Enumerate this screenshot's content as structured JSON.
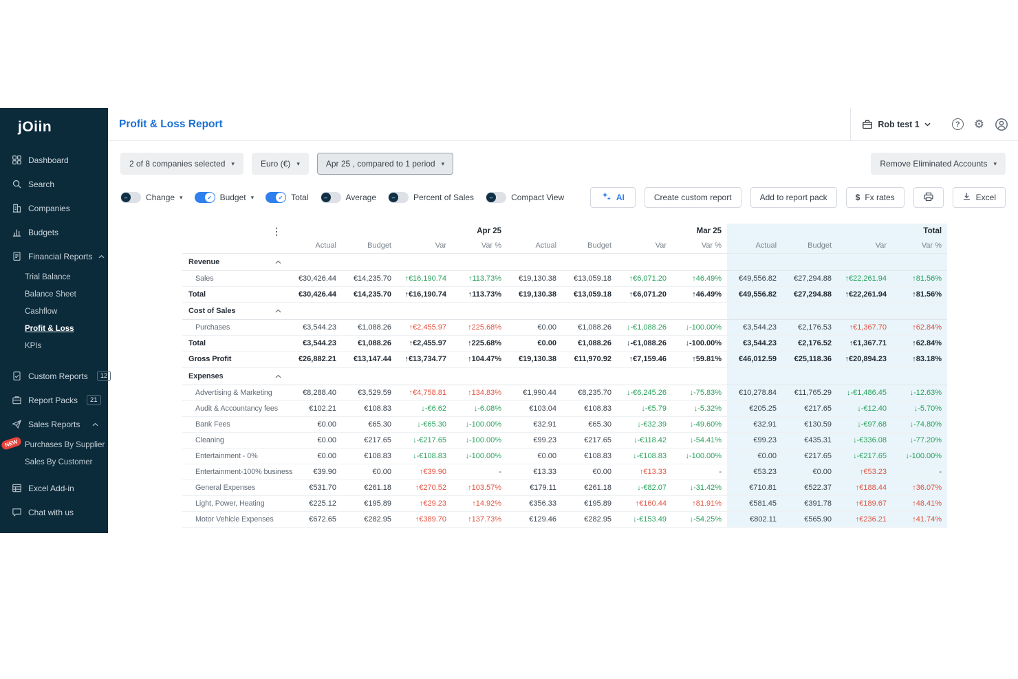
{
  "brand": {
    "logo": "jOiin"
  },
  "colors": {
    "sidebar_bg": "#0b2a3a",
    "title_blue": "#1a6fd4",
    "accent_blue": "#2f80ed",
    "positive_green": "#27a05b",
    "negative_red": "#e2513f",
    "total_highlight": "#e9f5fa"
  },
  "sidebar": {
    "items": [
      {
        "id": "dashboard",
        "label": "Dashboard",
        "icon": "dashboard"
      },
      {
        "id": "search",
        "label": "Search",
        "icon": "search"
      },
      {
        "id": "companies",
        "label": "Companies",
        "icon": "companies"
      },
      {
        "id": "budgets",
        "label": "Budgets",
        "icon": "budgets"
      },
      {
        "id": "financial-reports",
        "label": "Financial Reports",
        "icon": "report",
        "expanded": true,
        "children": [
          {
            "id": "trial-balance",
            "label": "Trial Balance"
          },
          {
            "id": "balance-sheet",
            "label": "Balance Sheet"
          },
          {
            "id": "cashflow",
            "label": "Cashflow"
          },
          {
            "id": "profit-and-loss",
            "label": "Profit & Loss",
            "active": true
          },
          {
            "id": "kpis",
            "label": "KPIs"
          }
        ]
      },
      {
        "id": "custom-reports",
        "label": "Custom Reports",
        "icon": "custom",
        "badge": "12",
        "gap": true
      },
      {
        "id": "report-packs",
        "label": "Report Packs",
        "icon": "packs",
        "badge": "21"
      },
      {
        "id": "sales-reports",
        "label": "Sales Reports",
        "icon": "sales",
        "expanded": true,
        "children": [
          {
            "id": "purchases-by-supplier",
            "label": "Purchases By Supplier",
            "new": "NEW"
          },
          {
            "id": "sales-by-customer",
            "label": "Sales By Customer"
          }
        ]
      },
      {
        "id": "excel-addin",
        "label": "Excel Add-in",
        "icon": "excel",
        "gapsm": true
      },
      {
        "id": "chat-with-us",
        "label": "Chat with us",
        "icon": "chat"
      }
    ]
  },
  "header": {
    "title": "Profit & Loss Report",
    "account": "Rob test 1"
  },
  "filters": {
    "companies": "2 of 8 companies selected",
    "currency": "Euro (€)",
    "period": "Apr 25 , compared to 1 period",
    "eliminated": "Remove Eliminated Accounts"
  },
  "toolbar": {
    "toggles": [
      {
        "label": "Change",
        "on": false,
        "caret": true
      },
      {
        "label": "Budget",
        "on": true,
        "caret": true
      },
      {
        "label": "Total",
        "on": true,
        "caret": false
      },
      {
        "label": "Average",
        "on": false,
        "caret": false
      },
      {
        "label": "Percent of Sales",
        "on": false,
        "caret": false
      },
      {
        "label": "Compact View",
        "on": false,
        "caret": false
      }
    ],
    "buttons": {
      "ai": "AI",
      "create_custom_report": "Create custom report",
      "add_to_report_pack": "Add to report pack",
      "fx_symbol": "$",
      "fx_rates": "Fx rates",
      "excel": "Excel"
    }
  },
  "table": {
    "groups": [
      {
        "label": "Apr 25",
        "highlight": false
      },
      {
        "label": "Mar 25",
        "highlight": false
      },
      {
        "label": "Total",
        "highlight": true
      }
    ],
    "subheaders": [
      "Actual",
      "Budget",
      "Var",
      "Var %"
    ],
    "rows": [
      {
        "type": "section",
        "label": "Revenue"
      },
      {
        "type": "data",
        "label": "Sales",
        "cells": [
          [
            "€30,426.44"
          ],
          [
            "€14,235.70"
          ],
          [
            "↑€16,190.74",
            "g"
          ],
          [
            "↑113.73%",
            "g"
          ],
          [
            "€19,130.38"
          ],
          [
            "€13,059.18"
          ],
          [
            "↑€6,071.20",
            "g"
          ],
          [
            "↑46.49%",
            "g"
          ],
          [
            "€49,556.82"
          ],
          [
            "€27,294.88"
          ],
          [
            "↑€22,261.94",
            "g"
          ],
          [
            "↑81.56%",
            "g"
          ]
        ]
      },
      {
        "type": "total",
        "label": "Total",
        "cells": [
          [
            "€30,426.44"
          ],
          [
            "€14,235.70"
          ],
          [
            "↑€16,190.74",
            "g"
          ],
          [
            "↑113.73%",
            "g"
          ],
          [
            "€19,130.38"
          ],
          [
            "€13,059.18"
          ],
          [
            "↑€6,071.20",
            "g"
          ],
          [
            "↑46.49%",
            "g"
          ],
          [
            "€49,556.82"
          ],
          [
            "€27,294.88"
          ],
          [
            "↑€22,261.94",
            "g"
          ],
          [
            "↑81.56%",
            "g"
          ]
        ]
      },
      {
        "type": "section",
        "label": "Cost of Sales"
      },
      {
        "type": "data",
        "label": "Purchases",
        "cells": [
          [
            "€3,544.23"
          ],
          [
            "€1,088.26"
          ],
          [
            "↑€2,455.97",
            "r"
          ],
          [
            "↑225.68%",
            "r"
          ],
          [
            "€0.00"
          ],
          [
            "€1,088.26"
          ],
          [
            "↓-€1,088.26",
            "g"
          ],
          [
            "↓-100.00%",
            "g"
          ],
          [
            "€3,544.23"
          ],
          [
            "€2,176.53"
          ],
          [
            "↑€1,367.70",
            "r"
          ],
          [
            "↑62.84%",
            "r"
          ]
        ]
      },
      {
        "type": "total",
        "label": "Total",
        "cells": [
          [
            "€3,544.23"
          ],
          [
            "€1,088.26"
          ],
          [
            "↑€2,455.97",
            "r"
          ],
          [
            "↑225.68%",
            "r"
          ],
          [
            "€0.00"
          ],
          [
            "€1,088.26"
          ],
          [
            "↓-€1,088.26",
            "g"
          ],
          [
            "↓-100.00%",
            "g"
          ],
          [
            "€3,544.23"
          ],
          [
            "€2,176.52"
          ],
          [
            "↑€1,367.71",
            "r"
          ],
          [
            "↑62.84%",
            "r"
          ]
        ]
      },
      {
        "type": "gross",
        "label": "Gross Profit",
        "cells": [
          [
            "€26,882.21"
          ],
          [
            "€13,147.44"
          ],
          [
            "↑€13,734.77",
            "g"
          ],
          [
            "↑104.47%",
            "g"
          ],
          [
            "€19,130.38"
          ],
          [
            "€11,970.92"
          ],
          [
            "↑€7,159.46",
            "g"
          ],
          [
            "↑59.81%",
            "g"
          ],
          [
            "€46,012.59"
          ],
          [
            "€25,118.36"
          ],
          [
            "↑€20,894.23",
            "g"
          ],
          [
            "↑83.18%",
            "g"
          ]
        ]
      },
      {
        "type": "section",
        "label": "Expenses"
      },
      {
        "type": "data",
        "label": "Advertising & Marketing",
        "cells": [
          [
            "€8,288.40"
          ],
          [
            "€3,529.59"
          ],
          [
            "↑€4,758.81",
            "r"
          ],
          [
            "↑134.83%",
            "r"
          ],
          [
            "€1,990.44"
          ],
          [
            "€8,235.70"
          ],
          [
            "↓-€6,245.26",
            "g"
          ],
          [
            "↓-75.83%",
            "g"
          ],
          [
            "€10,278.84"
          ],
          [
            "€11,765.29"
          ],
          [
            "↓-€1,486.45",
            "g"
          ],
          [
            "↓-12.63%",
            "g"
          ]
        ]
      },
      {
        "type": "data",
        "label": "Audit & Accountancy fees",
        "cells": [
          [
            "€102.21"
          ],
          [
            "€108.83"
          ],
          [
            "↓-€6.62",
            "g"
          ],
          [
            "↓-6.08%",
            "g"
          ],
          [
            "€103.04"
          ],
          [
            "€108.83"
          ],
          [
            "↓-€5.79",
            "g"
          ],
          [
            "↓-5.32%",
            "g"
          ],
          [
            "€205.25"
          ],
          [
            "€217.65"
          ],
          [
            "↓-€12.40",
            "g"
          ],
          [
            "↓-5.70%",
            "g"
          ]
        ]
      },
      {
        "type": "data",
        "label": "Bank Fees",
        "cells": [
          [
            "€0.00"
          ],
          [
            "€65.30"
          ],
          [
            "↓-€65.30",
            "g"
          ],
          [
            "↓-100.00%",
            "g"
          ],
          [
            "€32.91"
          ],
          [
            "€65.30"
          ],
          [
            "↓-€32.39",
            "g"
          ],
          [
            "↓-49.60%",
            "g"
          ],
          [
            "€32.91"
          ],
          [
            "€130.59"
          ],
          [
            "↓-€97.68",
            "g"
          ],
          [
            "↓-74.80%",
            "g"
          ]
        ]
      },
      {
        "type": "data",
        "label": "Cleaning",
        "cells": [
          [
            "€0.00"
          ],
          [
            "€217.65"
          ],
          [
            "↓-€217.65",
            "g"
          ],
          [
            "↓-100.00%",
            "g"
          ],
          [
            "€99.23"
          ],
          [
            "€217.65"
          ],
          [
            "↓-€118.42",
            "g"
          ],
          [
            "↓-54.41%",
            "g"
          ],
          [
            "€99.23"
          ],
          [
            "€435.31"
          ],
          [
            "↓-€336.08",
            "g"
          ],
          [
            "↓-77.20%",
            "g"
          ]
        ]
      },
      {
        "type": "data",
        "label": "Entertainment - 0%",
        "cells": [
          [
            "€0.00"
          ],
          [
            "€108.83"
          ],
          [
            "↓-€108.83",
            "g"
          ],
          [
            "↓-100.00%",
            "g"
          ],
          [
            "€0.00"
          ],
          [
            "€108.83"
          ],
          [
            "↓-€108.83",
            "g"
          ],
          [
            "↓-100.00%",
            "g"
          ],
          [
            "€0.00"
          ],
          [
            "€217.65"
          ],
          [
            "↓-€217.65",
            "g"
          ],
          [
            "↓-100.00%",
            "g"
          ]
        ]
      },
      {
        "type": "data",
        "label": "Entertainment-100% business",
        "cells": [
          [
            "€39.90"
          ],
          [
            "€0.00"
          ],
          [
            "↑€39.90",
            "r"
          ],
          [
            "-"
          ],
          [
            "€13.33"
          ],
          [
            "€0.00"
          ],
          [
            "↑€13.33",
            "r"
          ],
          [
            "-"
          ],
          [
            "€53.23"
          ],
          [
            "€0.00"
          ],
          [
            "↑€53.23",
            "r"
          ],
          [
            "-"
          ]
        ]
      },
      {
        "type": "data",
        "label": "General Expenses",
        "cells": [
          [
            "€531.70"
          ],
          [
            "€261.18"
          ],
          [
            "↑€270.52",
            "r"
          ],
          [
            "↑103.57%",
            "r"
          ],
          [
            "€179.11"
          ],
          [
            "€261.18"
          ],
          [
            "↓-€82.07",
            "g"
          ],
          [
            "↓-31.42%",
            "g"
          ],
          [
            "€710.81"
          ],
          [
            "€522.37"
          ],
          [
            "↑€188.44",
            "r"
          ],
          [
            "↑36.07%",
            "r"
          ]
        ]
      },
      {
        "type": "data",
        "label": "Light, Power, Heating",
        "cells": [
          [
            "€225.12"
          ],
          [
            "€195.89"
          ],
          [
            "↑€29.23",
            "r"
          ],
          [
            "↑14.92%",
            "r"
          ],
          [
            "€356.33"
          ],
          [
            "€195.89"
          ],
          [
            "↑€160.44",
            "r"
          ],
          [
            "↑81.91%",
            "r"
          ],
          [
            "€581.45"
          ],
          [
            "€391.78"
          ],
          [
            "↑€189.67",
            "r"
          ],
          [
            "↑48.41%",
            "r"
          ]
        ]
      },
      {
        "type": "data",
        "label": "Motor Vehicle Expenses",
        "cells": [
          [
            "€672.65"
          ],
          [
            "€282.95"
          ],
          [
            "↑€389.70",
            "r"
          ],
          [
            "↑137.73%",
            "r"
          ],
          [
            "€129.46"
          ],
          [
            "€282.95"
          ],
          [
            "↓-€153.49",
            "g"
          ],
          [
            "↓-54.25%",
            "g"
          ],
          [
            "€802.11"
          ],
          [
            "€565.90"
          ],
          [
            "↑€236.21",
            "r"
          ],
          [
            "↑41.74%",
            "r"
          ]
        ]
      }
    ]
  }
}
